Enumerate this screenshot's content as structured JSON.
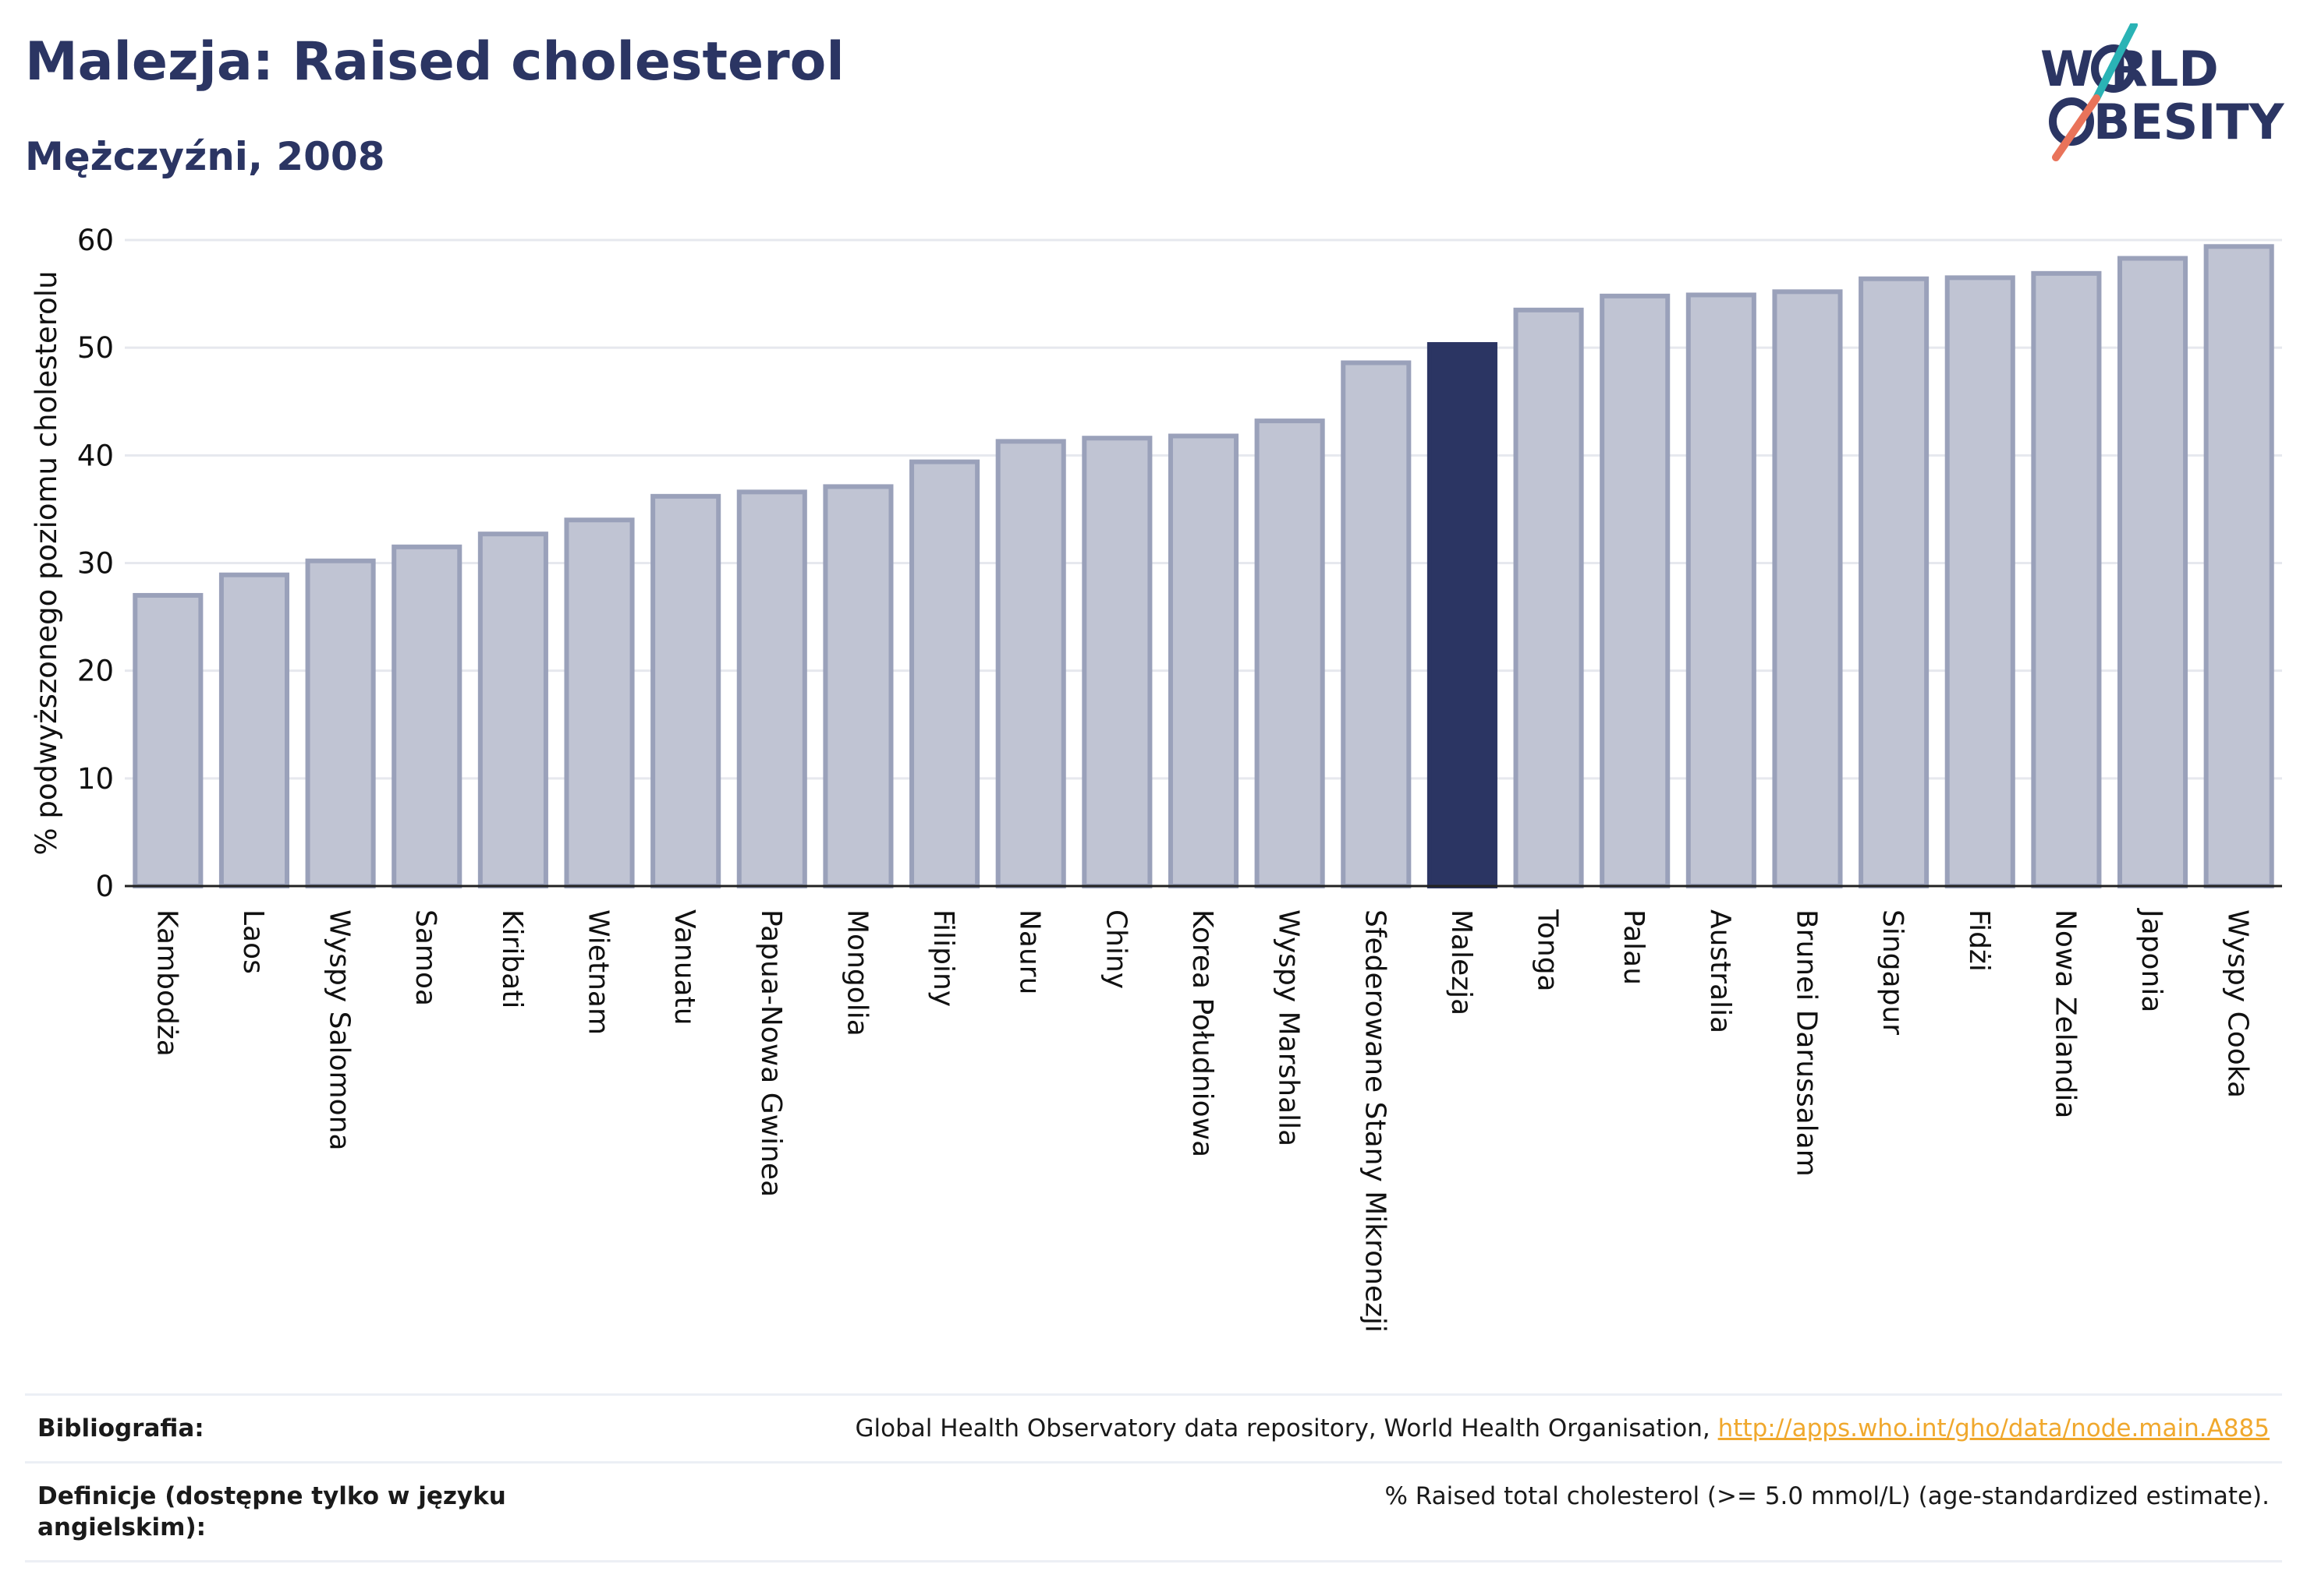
{
  "header": {
    "title": "Malezja: Raised cholesterol",
    "subtitle": "Mężczyźni, 2008"
  },
  "logo": {
    "line1": "W RLD",
    "line2": "BESITY",
    "text": "WORLD OBESITY",
    "colors": {
      "text": "#2b3563",
      "slash_top": "#2ab3b5",
      "slash_bottom": "#e9735a"
    }
  },
  "chart_data": {
    "type": "bar",
    "ylabel": "% podwyższonego poziomu cholesterolu",
    "xlabel": "",
    "ylim": [
      0,
      60
    ],
    "yticks": [
      0,
      10,
      20,
      30,
      40,
      50,
      60
    ],
    "grid": true,
    "highlight": "Malezja",
    "colors": {
      "bar": "#c0c4d3",
      "bar_border": "#9aa1ba",
      "highlight": "#2b3563",
      "grid": "#e6e8ee",
      "axis": "#222222"
    },
    "categories": [
      "Kambodża",
      "Laos",
      "Wyspy Salomona",
      "Samoa",
      "Kiribati",
      "Wietnam",
      "Vanuatu",
      "Papua-Nowa Gwinea",
      "Mongolia",
      "Filipiny",
      "Nauru",
      "Chiny",
      "Korea Południowa",
      "Wyspy Marshalla",
      "Sfederowane Stany Mikronezji",
      "Malezja",
      "Tonga",
      "Palau",
      "Australia",
      "Brunei Darussalam",
      "Singapur",
      "Fidżi",
      "Nowa Zelandia",
      "Japonia",
      "Wyspy Cooka"
    ],
    "values": [
      27.0,
      28.9,
      30.2,
      31.5,
      32.7,
      34.0,
      36.2,
      36.6,
      37.1,
      39.4,
      41.3,
      41.6,
      41.8,
      43.2,
      48.6,
      50.3,
      53.5,
      54.8,
      54.9,
      55.2,
      56.4,
      56.5,
      56.9,
      58.3,
      59.4
    ]
  },
  "references": {
    "bibliography_label": "Bibliografia:",
    "bibliography_text": "Global Health Observatory data repository, World Health Organisation, ",
    "bibliography_link": "http://apps.who.int/gho/data/node.main.A885",
    "definitions_label": "Definicje (dostępne tylko w języku angielskim):",
    "definitions_text": "% Raised total cholesterol (>= 5.0 mmol/L) (age-standardized estimate)."
  }
}
